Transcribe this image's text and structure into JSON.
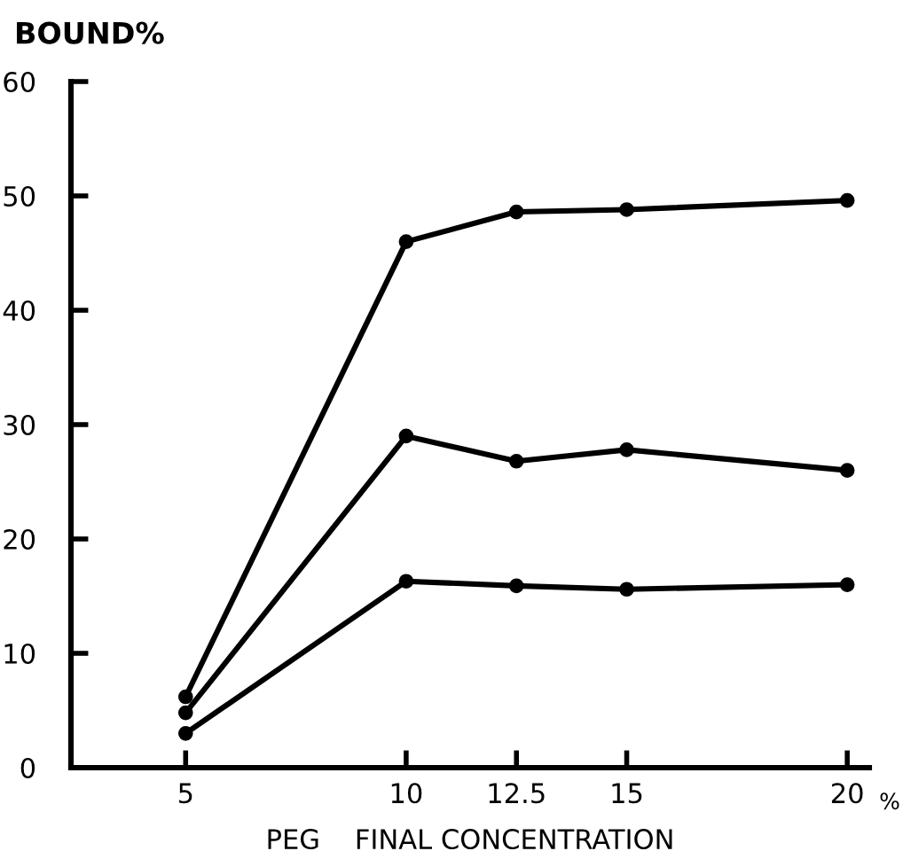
{
  "chart_data": {
    "type": "line",
    "ylabel": "BOUND%",
    "xlabel": "PEG    FINAL CONCENTRATION",
    "annotations": [
      "%"
    ],
    "x": [
      5,
      10,
      12.5,
      15,
      20
    ],
    "series": [
      {
        "color": "#000000",
        "values": [
          6.2,
          46,
          48.6,
          48.8,
          49.6
        ]
      },
      {
        "color": "#000000",
        "values": [
          4.8,
          29,
          26.8,
          27.8,
          26
        ]
      },
      {
        "color": "#000000",
        "values": [
          3,
          16.3,
          15.9,
          15.6,
          16
        ]
      }
    ],
    "xlim": [
      2.4,
      20.5
    ],
    "ylim": [
      0,
      60
    ],
    "xticks": [
      5,
      10,
      12.5,
      15,
      20
    ],
    "yticks": [
      0,
      10,
      20,
      30,
      40,
      50,
      60
    ],
    "grid": false,
    "legend": false,
    "marker": "circle",
    "line_style": "solid"
  }
}
